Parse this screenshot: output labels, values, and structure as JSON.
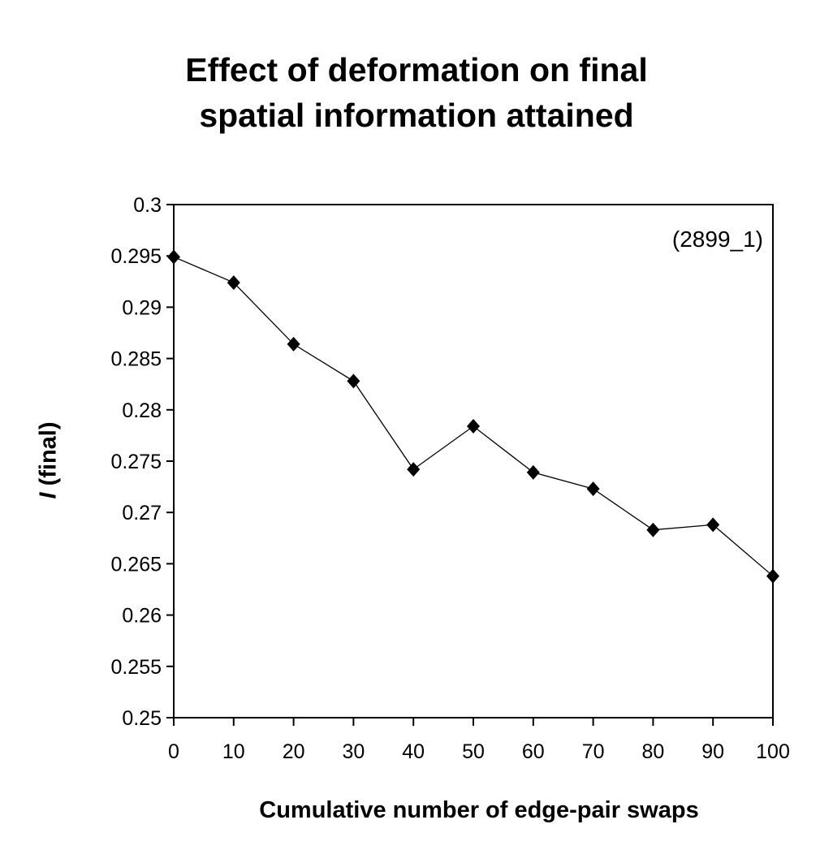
{
  "chart_data": {
    "type": "line",
    "title_line1": "Effect of deformation on final",
    "title_line2": "spatial information attained",
    "xlabel": "Cumulative number of edge-pair swaps",
    "ylabel_italic": "I",
    "ylabel_rest": " (final)",
    "annotation": "(2899_1)",
    "xlim": [
      0,
      100
    ],
    "ylim": [
      0.25,
      0.3
    ],
    "x_ticks": [
      "0",
      "10",
      "20",
      "30",
      "40",
      "50",
      "60",
      "70",
      "80",
      "90",
      "100"
    ],
    "y_ticks": [
      "0.3",
      "0.295",
      "0.29",
      "0.285",
      "0.28",
      "0.275",
      "0.27",
      "0.265",
      "0.26",
      "0.255",
      "0.25"
    ],
    "grid": false,
    "series": [
      {
        "name": "I (final)",
        "marker": "diamond",
        "color": "#000000",
        "x": [
          0,
          10,
          20,
          30,
          40,
          50,
          60,
          70,
          80,
          90,
          100
        ],
        "values": [
          0.2949,
          0.2924,
          0.2864,
          0.2828,
          0.2742,
          0.2784,
          0.2739,
          0.2723,
          0.2683,
          0.2688,
          0.2638
        ]
      }
    ]
  }
}
